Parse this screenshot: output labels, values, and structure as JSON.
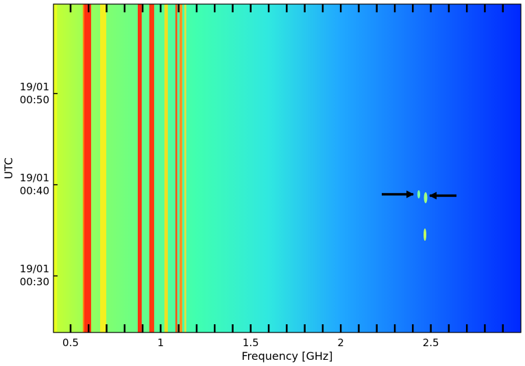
{
  "chart_data": {
    "type": "spectrogram",
    "xlabel": "Frequency [GHz]",
    "ylabel": "UTC",
    "xlim": [
      0.405,
      3.0
    ],
    "ylim": [
      23.8,
      59.8
    ],
    "xticks": [
      0.5,
      1.0,
      1.5,
      2.0,
      2.5
    ],
    "xminorticks": [
      0.6,
      0.7,
      0.8,
      0.9,
      1.1,
      1.2,
      1.3,
      1.4,
      1.6,
      1.7,
      1.8,
      1.9,
      2.1,
      2.2,
      2.3,
      2.4,
      2.6,
      2.7,
      2.8,
      2.9
    ],
    "yticks": [
      {
        "value": 30,
        "label": "19/01\n00:30"
      },
      {
        "value": 40,
        "label": "19/01\n00:40"
      },
      {
        "value": 50,
        "label": "19/01\n00:50"
      }
    ],
    "gradient": [
      {
        "x": 0.405,
        "color": "#c8ff30"
      },
      {
        "x": 0.7,
        "color": "#80ff70"
      },
      {
        "x": 1.2,
        "color": "#40ffb0"
      },
      {
        "x": 1.6,
        "color": "#30e8e0"
      },
      {
        "x": 2.0,
        "color": "#20a8ff"
      },
      {
        "x": 2.5,
        "color": "#1068ff"
      },
      {
        "x": 3.0,
        "color": "#0028ff"
      }
    ],
    "bands": [
      {
        "x": [
          0.405,
          0.425
        ],
        "color": "#e8ff20"
      },
      {
        "x": [
          0.568,
          0.576
        ],
        "color": "#ff8010"
      },
      {
        "x": [
          0.576,
          0.614
        ],
        "color": "#ff3010"
      },
      {
        "x": [
          0.664,
          0.698
        ],
        "color": "#f4f020"
      },
      {
        "x": [
          0.873,
          0.895
        ],
        "color": "#ff3010"
      },
      {
        "x": [
          0.937,
          0.964
        ],
        "color": "#ff3a10"
      },
      {
        "x": [
          1.021,
          1.04
        ],
        "color": "#f0e020"
      },
      {
        "x": [
          1.082,
          1.092
        ],
        "color": "#ff5010"
      },
      {
        "x": [
          1.105,
          1.12
        ],
        "color": "#ff9020"
      },
      {
        "x": [
          1.132,
          1.142
        ],
        "color": "#e8e040"
      }
    ]
  }
}
